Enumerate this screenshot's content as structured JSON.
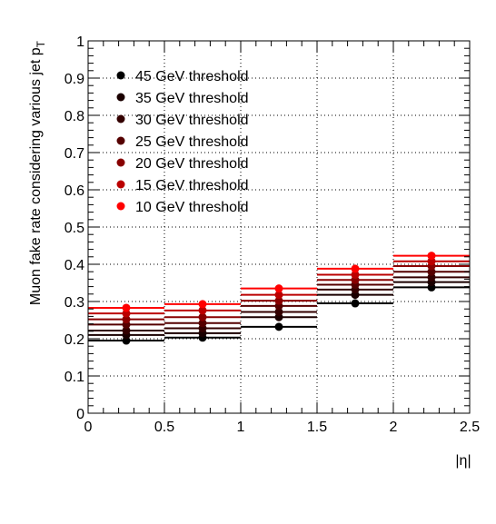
{
  "chart_data": {
    "type": "scatter",
    "title": "",
    "xlabel": "|η|",
    "ylabel_main": "Muon fake rate considering various jet p",
    "ylabel_sub": "T",
    "xlim": [
      0,
      2.5
    ],
    "ylim": [
      0,
      1
    ],
    "xticks": [
      "0",
      "0.5",
      "1",
      "1.5",
      "2",
      "2.5"
    ],
    "yticks": [
      "0",
      "0.1",
      "0.2",
      "0.3",
      "0.4",
      "0.5",
      "0.6",
      "0.7",
      "0.8",
      "0.9",
      "1"
    ],
    "grid": true,
    "legend_position": "top-left",
    "bin_edges": [
      0,
      0.5,
      1,
      1.5,
      2,
      2.5
    ],
    "bin_centers": [
      0.25,
      0.75,
      1.25,
      1.75,
      2.25
    ],
    "series": [
      {
        "name": "45 GeV threshold",
        "color": "#000000",
        "values": [
          0.195,
          0.203,
          0.232,
          0.295,
          0.338
        ]
      },
      {
        "name": "35 GeV threshold",
        "color": "#1a0000",
        "values": [
          0.21,
          0.215,
          0.258,
          0.318,
          0.352
        ]
      },
      {
        "name": "30 GeV threshold",
        "color": "#330000",
        "values": [
          0.222,
          0.228,
          0.272,
          0.332,
          0.365
        ]
      },
      {
        "name": "25 GeV threshold",
        "color": "#550000",
        "values": [
          0.238,
          0.242,
          0.288,
          0.345,
          0.38
        ]
      },
      {
        "name": "20 GeV threshold",
        "color": "#880000",
        "values": [
          0.252,
          0.258,
          0.302,
          0.358,
          0.395
        ]
      },
      {
        "name": "15 GeV threshold",
        "color": "#bb0000",
        "values": [
          0.268,
          0.276,
          0.318,
          0.372,
          0.408
        ]
      },
      {
        "name": "10 GeV threshold",
        "color": "#ff0000",
        "values": [
          0.283,
          0.293,
          0.335,
          0.388,
          0.423
        ]
      }
    ]
  }
}
